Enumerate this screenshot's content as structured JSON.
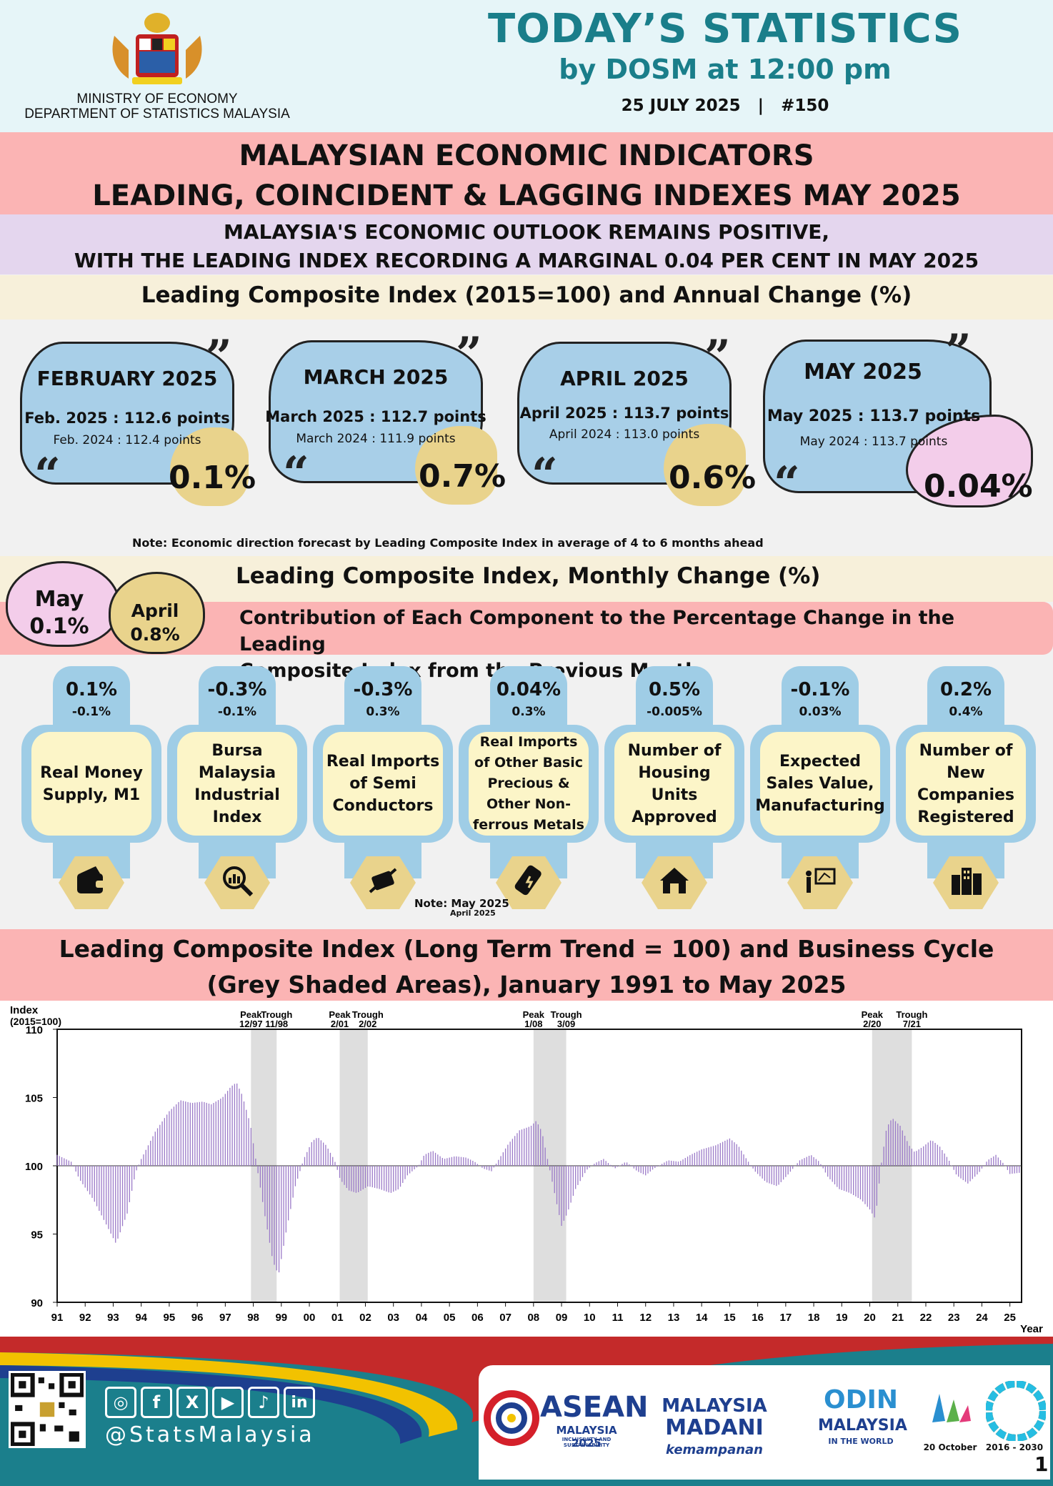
{
  "header": {
    "ministry": "MINISTRY OF ECONOMY",
    "department": "DEPARTMENT OF STATISTICS MALAYSIA",
    "title": "TODAY’S STATISTICS",
    "subtitle": "by DOSM at 12:00 pm",
    "date_line": "25 JULY 2025   |   #150"
  },
  "main_title": {
    "line1": "MALAYSIAN ECONOMIC INDICATORS",
    "line2": "LEADING, COINCIDENT & LAGGING INDEXES MAY 2025"
  },
  "subtitle": {
    "line1": "MALAYSIA'S ECONOMIC OUTLOOK REMAINS POSITIVE,",
    "line2": "WITH THE LEADING INDEX RECORDING A MARGINAL 0.04 PER CENT IN MAY 2025"
  },
  "leading_section": {
    "heading": "Leading Composite Index (2015=100) and Annual Change (%)",
    "note": "Note: Economic direction forecast by Leading Composite Index in average of 4 to 6 months ahead",
    "months": [
      {
        "title": "FEBRUARY 2025",
        "current": "Feb. 2025 : 112.6 points",
        "previous": "Feb. 2024 : 112.4 points",
        "change": "0.1%"
      },
      {
        "title": "MARCH 2025",
        "current": "March 2025 : 112.7 points",
        "previous": "March 2024 : 111.9 points",
        "change": "0.7%"
      },
      {
        "title": "APRIL 2025",
        "current": "April 2025 : 113.7 points",
        "previous": "April 2024 : 113.0 points",
        "change": "0.6%"
      },
      {
        "title": "MAY 2025",
        "current": "May 2025 : 113.7 points",
        "previous": "May 2024 : 113.7 points",
        "change": "0.04%"
      }
    ]
  },
  "monthly_section": {
    "heading": "Leading Composite Index, Monthly Change (%)",
    "may_label": "May",
    "may_value": "0.1%",
    "april_label": "April",
    "april_value": "0.8%",
    "contribution_line1": "Contribution of Each Component to the Percentage Change in the Leading",
    "contribution_line2": "Composite Index from the Previous Month",
    "note": "Note: May 2025",
    "note_sub": "April 2025",
    "components": [
      {
        "may": "0.1%",
        "april": "-0.1%",
        "label": "Real Money Supply, M1",
        "icon": "wallet-icon"
      },
      {
        "may": "-0.3%",
        "april": "-0.1%",
        "label": "Bursa Malaysia Industrial Index",
        "icon": "chart-magnifier-icon"
      },
      {
        "may": "-0.3%",
        "april": "0.3%",
        "label": "Real Imports of Semi Conductors",
        "icon": "chip-icon"
      },
      {
        "may": "0.04%",
        "april": "0.3%",
        "label": "Real Imports of Other Basic Precious & Other Non-ferrous Metals",
        "icon": "metal-bar-icon"
      },
      {
        "may": "0.5%",
        "april": "-0.005%",
        "label": "Number of Housing Units Approved",
        "icon": "house-icon"
      },
      {
        "may": "-0.1%",
        "april": "0.03%",
        "label": "Expected Sales Value, Manufacturing",
        "icon": "presentation-icon"
      },
      {
        "may": "0.2%",
        "april": "0.4%",
        "label": "Number of New Companies Registered",
        "icon": "buildings-icon"
      }
    ]
  },
  "chart_section": {
    "title_line1": "Leading Composite Index (Long Term Trend = 100) and Business Cycle",
    "title_line2": "(Grey Shaded Areas), January 1991 to May 2025"
  },
  "chart_data": {
    "type": "bar",
    "ylabel": "Index",
    "ylabel_sub": "(2015=100)",
    "xlabel": "Year",
    "ylim": [
      90,
      110
    ],
    "yticks": [
      90,
      95,
      100,
      105,
      110
    ],
    "baseline": 100,
    "x_tick_labels": [
      "91",
      "92",
      "93",
      "94",
      "95",
      "96",
      "97",
      "98",
      "99",
      "00",
      "01",
      "02",
      "03",
      "04",
      "05",
      "06",
      "07",
      "08",
      "09",
      "10",
      "11",
      "12",
      "13",
      "14",
      "15",
      "16",
      "17",
      "18",
      "19",
      "20",
      "21",
      "22",
      "23",
      "24",
      "25"
    ],
    "series": [
      {
        "x_start": "1991-01",
        "x_end": "2025-05",
        "keypoints": [
          [
            1991.0,
            100.8
          ],
          [
            1991.5,
            100.3
          ],
          [
            1991.8,
            99.0
          ],
          [
            1992.3,
            97.5
          ],
          [
            1992.8,
            95.5
          ],
          [
            1993.1,
            94.3
          ],
          [
            1993.5,
            96.5
          ],
          [
            1993.8,
            99.5
          ],
          [
            1994.0,
            100.5
          ],
          [
            1994.5,
            102.5
          ],
          [
            1995.0,
            104.0
          ],
          [
            1995.4,
            104.8
          ],
          [
            1995.8,
            104.6
          ],
          [
            1996.2,
            104.7
          ],
          [
            1996.5,
            104.5
          ],
          [
            1996.9,
            105.0
          ],
          [
            1997.2,
            105.8
          ],
          [
            1997.4,
            106.1
          ],
          [
            1997.6,
            105.2
          ],
          [
            1997.9,
            103.0
          ],
          [
            1998.1,
            100.3
          ],
          [
            1998.4,
            96.5
          ],
          [
            1998.7,
            93.0
          ],
          [
            1998.9,
            92.0
          ],
          [
            1999.2,
            95.5
          ],
          [
            1999.5,
            98.5
          ],
          [
            1999.8,
            100.5
          ],
          [
            2000.1,
            101.8
          ],
          [
            2000.3,
            102.1
          ],
          [
            2000.6,
            101.5
          ],
          [
            2000.9,
            100.4
          ],
          [
            2001.1,
            99.0
          ],
          [
            2001.4,
            98.2
          ],
          [
            2001.7,
            98.0
          ],
          [
            2002.1,
            98.5
          ],
          [
            2002.5,
            98.3
          ],
          [
            2002.9,
            98.0
          ],
          [
            2003.2,
            98.3
          ],
          [
            2003.5,
            99.3
          ],
          [
            2003.9,
            100.0
          ],
          [
            2004.1,
            100.8
          ],
          [
            2004.4,
            101.1
          ],
          [
            2004.8,
            100.5
          ],
          [
            2005.2,
            100.7
          ],
          [
            2005.6,
            100.6
          ],
          [
            2005.9,
            100.3
          ],
          [
            2006.2,
            99.8
          ],
          [
            2006.5,
            99.6
          ],
          [
            2006.8,
            100.6
          ],
          [
            2007.1,
            101.6
          ],
          [
            2007.5,
            102.6
          ],
          [
            2007.9,
            102.9
          ],
          [
            2008.1,
            103.3
          ],
          [
            2008.3,
            102.5
          ],
          [
            2008.5,
            100.5
          ],
          [
            2008.8,
            97.5
          ],
          [
            2009.0,
            95.6
          ],
          [
            2009.2,
            96.5
          ],
          [
            2009.5,
            98.3
          ],
          [
            2009.9,
            99.7
          ],
          [
            2010.2,
            100.2
          ],
          [
            2010.5,
            100.5
          ],
          [
            2010.9,
            99.8
          ],
          [
            2011.3,
            100.3
          ],
          [
            2011.7,
            99.6
          ],
          [
            2012.0,
            99.3
          ],
          [
            2012.3,
            99.8
          ],
          [
            2012.8,
            100.4
          ],
          [
            2013.2,
            100.3
          ],
          [
            2013.6,
            100.8
          ],
          [
            2014.0,
            101.2
          ],
          [
            2014.5,
            101.5
          ],
          [
            2015.0,
            102.0
          ],
          [
            2015.3,
            101.5
          ],
          [
            2015.6,
            100.5
          ],
          [
            2015.9,
            99.6
          ],
          [
            2016.3,
            98.8
          ],
          [
            2016.7,
            98.5
          ],
          [
            2017.1,
            99.4
          ],
          [
            2017.5,
            100.4
          ],
          [
            2017.9,
            100.8
          ],
          [
            2018.2,
            100.3
          ],
          [
            2018.5,
            99.2
          ],
          [
            2018.9,
            98.3
          ],
          [
            2019.3,
            98.0
          ],
          [
            2019.7,
            97.5
          ],
          [
            2020.0,
            96.8
          ],
          [
            2020.2,
            96.1
          ],
          [
            2020.4,
            100.0
          ],
          [
            2020.6,
            102.8
          ],
          [
            2020.8,
            103.5
          ],
          [
            2021.1,
            102.9
          ],
          [
            2021.4,
            101.5
          ],
          [
            2021.6,
            101.0
          ],
          [
            2021.9,
            101.4
          ],
          [
            2022.2,
            101.9
          ],
          [
            2022.5,
            101.4
          ],
          [
            2022.8,
            100.5
          ],
          [
            2023.1,
            99.3
          ],
          [
            2023.5,
            98.7
          ],
          [
            2023.9,
            99.5
          ],
          [
            2024.2,
            100.4
          ],
          [
            2024.5,
            100.8
          ],
          [
            2024.8,
            100.1
          ],
          [
            2025.0,
            99.4
          ],
          [
            2025.4,
            99.5
          ]
        ]
      }
    ],
    "cycle_markers": [
      {
        "label": "Peak",
        "date": "12/97"
      },
      {
        "label": "Trough",
        "date": "11/98"
      },
      {
        "label": "Peak",
        "date": "2/01"
      },
      {
        "label": "Trough",
        "date": "2/02"
      },
      {
        "label": "Peak",
        "date": "1/08"
      },
      {
        "label": "Trough",
        "date": "3/09"
      },
      {
        "label": "Peak",
        "date": "2/20"
      },
      {
        "label": "Trough",
        "date": "7/21"
      }
    ],
    "shaded_periods": [
      [
        "1997-12",
        "1998-11"
      ],
      [
        "2001-02",
        "2002-02"
      ],
      [
        "2008-01",
        "2009-03"
      ],
      [
        "2020-02",
        "2021-07"
      ]
    ],
    "bar_color": "#9b7ac8",
    "shade_color": "#dedede"
  },
  "footer": {
    "handle": "@StatsMalaysia",
    "social_icons": [
      "instagram-icon",
      "facebook-icon",
      "x-icon",
      "youtube-icon",
      "tiktok-icon",
      "linkedin-icon"
    ],
    "logos": {
      "asean": "ASEAN",
      "asean_sub": "MALAYSIA 2025",
      "asean_tag": "INCLUSIVITY AND SUSTAINABILITY",
      "madani": "MALAYSIA",
      "madani2": "MADANI",
      "madani_tag": "kemampanan",
      "odin": "ODIN",
      "odin_sub": "MALAYSIA",
      "odin_tag": "IN THE WORLD",
      "stats_day": "20 October",
      "sdg": "2016 - 2030"
    },
    "page_number": "1"
  },
  "colors": {
    "teal": "#1a7e8a",
    "pink": "#fbb4b4",
    "lavender": "#e4d6ee",
    "cream": "#f7f0da",
    "blue": "#a8cfe8",
    "gold": "#e9d38c"
  }
}
